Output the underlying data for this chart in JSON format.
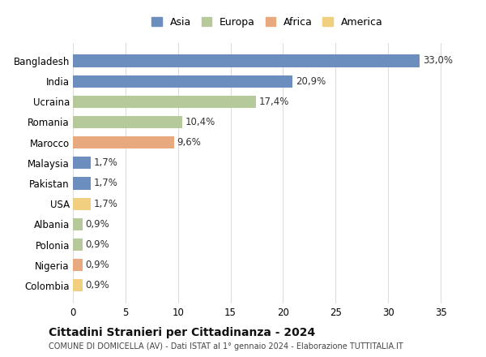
{
  "countries": [
    "Bangladesh",
    "India",
    "Ucraina",
    "Romania",
    "Marocco",
    "Malaysia",
    "Pakistan",
    "USA",
    "Albania",
    "Polonia",
    "Nigeria",
    "Colombia"
  ],
  "values": [
    33.0,
    20.9,
    17.4,
    10.4,
    9.6,
    1.7,
    1.7,
    1.7,
    0.9,
    0.9,
    0.9,
    0.9
  ],
  "labels": [
    "33,0%",
    "20,9%",
    "17,4%",
    "10,4%",
    "9,6%",
    "1,7%",
    "1,7%",
    "1,7%",
    "0,9%",
    "0,9%",
    "0,9%",
    "0,9%"
  ],
  "colors": [
    "#6c8ebf",
    "#6c8ebf",
    "#b5c99a",
    "#b5c99a",
    "#e8a97e",
    "#6c8ebf",
    "#6c8ebf",
    "#f0d080",
    "#b5c99a",
    "#b5c99a",
    "#e8a97e",
    "#f0d080"
  ],
  "legend_labels": [
    "Asia",
    "Europa",
    "Africa",
    "America"
  ],
  "legend_colors": [
    "#6c8ebf",
    "#b5c99a",
    "#e8a97e",
    "#f0d080"
  ],
  "title": "Cittadini Stranieri per Cittadinanza - 2024",
  "subtitle": "COMUNE DI DOMICELLA (AV) - Dati ISTAT al 1° gennaio 2024 - Elaborazione TUTTITALIA.IT",
  "xlim": [
    0,
    37
  ],
  "xticks": [
    0,
    5,
    10,
    15,
    20,
    25,
    30,
    35
  ],
  "bg_color": "#ffffff",
  "grid_color": "#dddddd"
}
